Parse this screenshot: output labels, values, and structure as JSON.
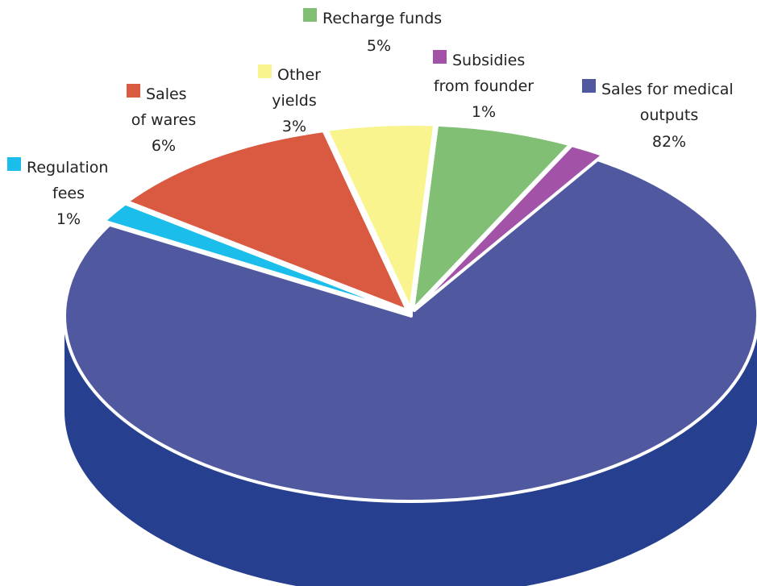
{
  "chart_data": {
    "type": "pie",
    "title": "",
    "style": "3d-exploded",
    "slices": [
      {
        "name": "Sales for medical outputs",
        "label_lines": [
          "Sales for medical",
          "outputs"
        ],
        "value": 82,
        "pct_label": "82%",
        "color": "#5059A0",
        "side_color": "#263F8F"
      },
      {
        "name": "Regulation fees",
        "label_lines": [
          "Regulation",
          "fees"
        ],
        "value": 1,
        "pct_label": "1%",
        "color": "#1BBDEB",
        "side_color": "#1590B5"
      },
      {
        "name": "Sales of wares",
        "label_lines": [
          "Sales",
          "of wares"
        ],
        "value": 6,
        "pct_label": "6%",
        "color": "#D95A41",
        "side_color": "#A8402C"
      },
      {
        "name": "Other yields",
        "label_lines": [
          "Other",
          "yields"
        ],
        "value": 3,
        "pct_label": "3%",
        "color": "#FAF48E",
        "side_color": "#C9C36A"
      },
      {
        "name": "Recharge funds",
        "label_lines": [
          "Recharge funds"
        ],
        "value": 5,
        "pct_label": "5%",
        "color": "#80BF74",
        "side_color": "#5E9554"
      },
      {
        "name": "Subsidies from founder",
        "label_lines": [
          "Subsidies",
          "from founder"
        ],
        "value": 1,
        "pct_label": "1%",
        "color": "#A253A8",
        "side_color": "#7A3A80"
      }
    ]
  }
}
